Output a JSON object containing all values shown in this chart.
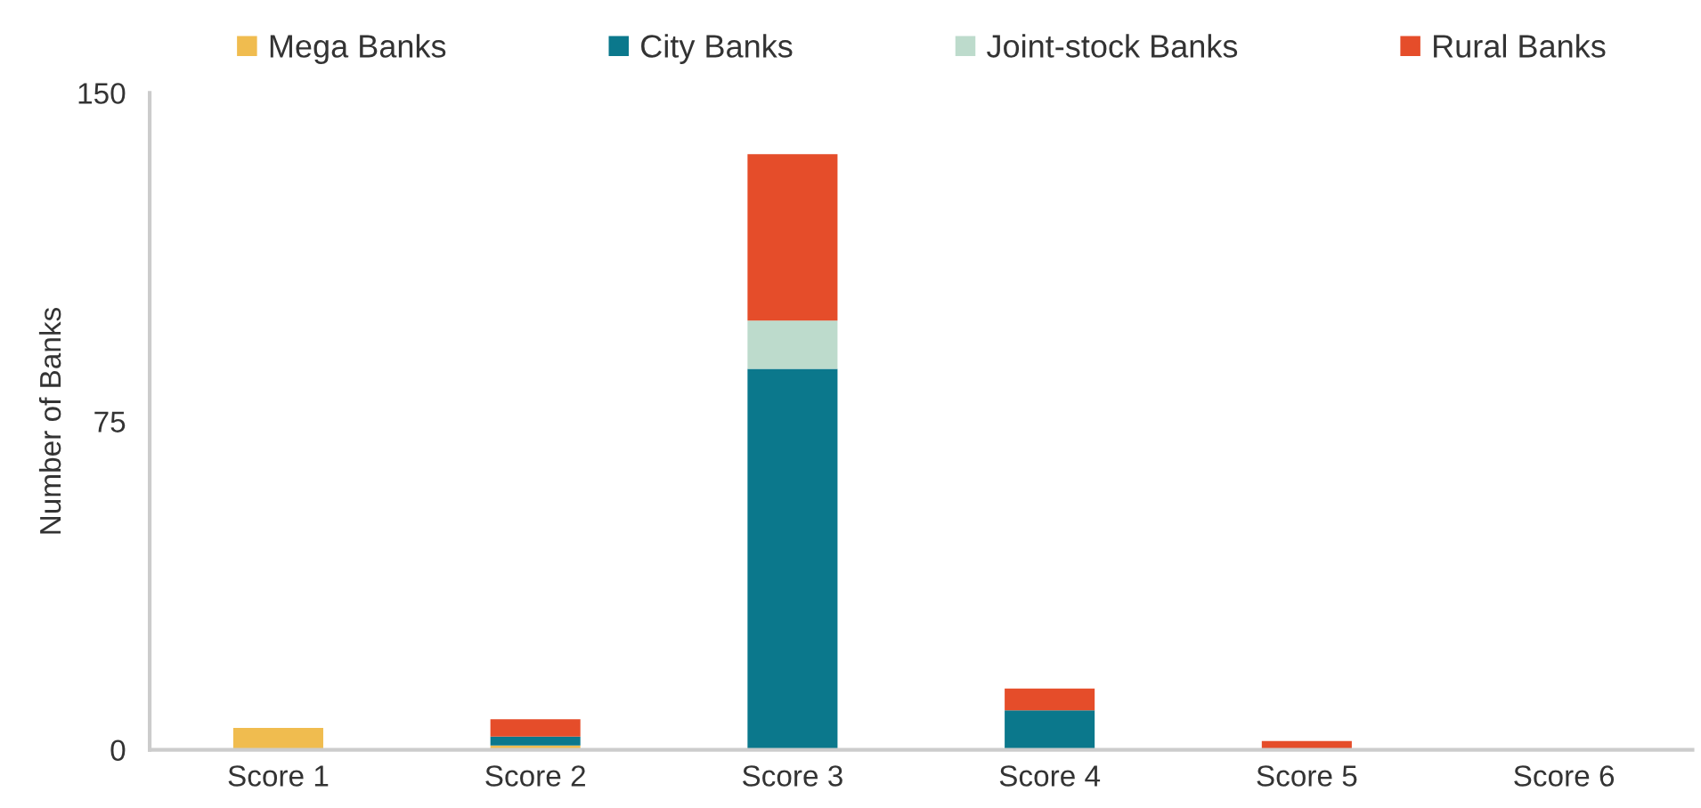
{
  "chart_data": {
    "type": "bar",
    "ylabel": "Number of Banks",
    "stacked": true,
    "legend": "top",
    "categories": [
      "Score 1",
      "Score 2",
      "Score 3",
      "Score 4",
      "Score 5",
      "Score 6"
    ],
    "series": [
      {
        "name": "Mega Banks",
        "color": "#f0bc4f",
        "values": [
          5,
          1,
          null,
          null,
          null,
          null
        ]
      },
      {
        "name": "City Banks",
        "color": "#0b788c",
        "values": [
          null,
          2,
          87,
          9,
          null,
          null
        ]
      },
      {
        "name": "Joint-stock Banks",
        "color": "#bddbcc",
        "values": [
          null,
          null,
          11,
          null,
          null,
          null
        ]
      },
      {
        "name": "Rural Banks",
        "color": "#e54d2a",
        "values": [
          null,
          4,
          38,
          5,
          2,
          null
        ]
      }
    ],
    "ylim": [
      0,
      150
    ],
    "yticks": [
      0,
      75,
      150
    ],
    "grid": false
  }
}
